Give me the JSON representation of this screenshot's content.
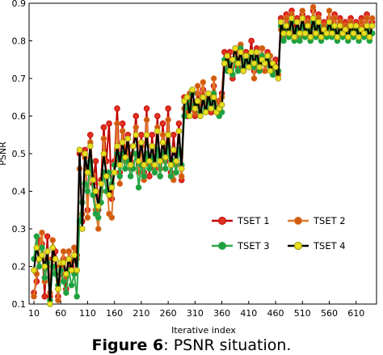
{
  "caption": {
    "label": "Figure 6",
    "text": ": PSNR situation."
  },
  "chart_data": {
    "type": "line",
    "xlabel": "Iterative index",
    "ylabel": "PSNR",
    "xlim": [
      1,
      648
    ],
    "ylim": [
      0.1,
      0.9
    ],
    "x_ticks": [
      10,
      60,
      110,
      160,
      210,
      260,
      310,
      360,
      410,
      460,
      510,
      560,
      610
    ],
    "y_ticks": [
      0.1,
      0.2,
      0.3,
      0.4,
      0.5,
      0.6,
      0.7,
      0.8,
      0.9
    ],
    "legend_position": "lower-right",
    "x": [
      10,
      15,
      20,
      25,
      30,
      35,
      40,
      45,
      50,
      55,
      60,
      65,
      70,
      75,
      80,
      85,
      90,
      95,
      100,
      105,
      110,
      115,
      120,
      125,
      130,
      135,
      140,
      145,
      150,
      155,
      160,
      165,
      170,
      175,
      180,
      185,
      190,
      195,
      200,
      205,
      210,
      215,
      220,
      225,
      230,
      235,
      240,
      245,
      250,
      255,
      260,
      265,
      270,
      275,
      280,
      285,
      290,
      295,
      300,
      305,
      310,
      315,
      320,
      325,
      330,
      335,
      340,
      345,
      350,
      355,
      360,
      365,
      370,
      375,
      380,
      385,
      390,
      395,
      400,
      405,
      410,
      415,
      420,
      425,
      430,
      435,
      440,
      445,
      450,
      455,
      460,
      465,
      470,
      475,
      480,
      485,
      490,
      495,
      500,
      505,
      510,
      515,
      520,
      525,
      530,
      535,
      540,
      545,
      550,
      555,
      560,
      565,
      570,
      575,
      580,
      585,
      590,
      595,
      600,
      605,
      610,
      615,
      620,
      625,
      630,
      635,
      640
    ],
    "series": [
      {
        "name": "TSET 1",
        "line_color": "#c00000",
        "marker_color": "#e03020",
        "values": [
          0.13,
          0.16,
          0.27,
          0.26,
          0.12,
          0.28,
          0.12,
          0.22,
          0.24,
          0.12,
          0.18,
          0.22,
          0.14,
          0.24,
          0.2,
          0.25,
          0.23,
          0.5,
          0.32,
          0.51,
          0.35,
          0.55,
          0.42,
          0.48,
          0.35,
          0.43,
          0.57,
          0.48,
          0.58,
          0.38,
          0.48,
          0.62,
          0.45,
          0.58,
          0.5,
          0.55,
          0.48,
          0.52,
          0.6,
          0.47,
          0.55,
          0.45,
          0.62,
          0.44,
          0.55,
          0.46,
          0.6,
          0.44,
          0.58,
          0.48,
          0.62,
          0.45,
          0.55,
          0.47,
          0.58,
          0.43,
          0.65,
          0.6,
          0.64,
          0.62,
          0.6,
          0.66,
          0.63,
          0.67,
          0.62,
          0.65,
          0.61,
          0.68,
          0.62,
          0.64,
          0.66,
          0.77,
          0.74,
          0.77,
          0.7,
          0.78,
          0.73,
          0.79,
          0.72,
          0.77,
          0.74,
          0.8,
          0.72,
          0.78,
          0.74,
          0.78,
          0.72,
          0.77,
          0.74,
          0.71,
          0.75,
          0.72,
          0.86,
          0.82,
          0.87,
          0.84,
          0.88,
          0.83,
          0.86,
          0.82,
          0.87,
          0.84,
          0.86,
          0.82,
          0.88,
          0.84,
          0.87,
          0.82,
          0.85,
          0.83,
          0.86,
          0.84,
          0.87,
          0.82,
          0.86,
          0.84,
          0.85,
          0.83,
          0.86,
          0.82,
          0.85,
          0.84,
          0.86,
          0.83,
          0.87,
          0.82,
          0.85
        ]
      },
      {
        "name": "TSET 2",
        "line_color": "#e07a2a",
        "marker_color": "#d05a10",
        "values": [
          0.12,
          0.18,
          0.25,
          0.29,
          0.16,
          0.22,
          0.13,
          0.27,
          0.2,
          0.11,
          0.2,
          0.24,
          0.17,
          0.24,
          0.21,
          0.25,
          0.22,
          0.46,
          0.34,
          0.49,
          0.33,
          0.53,
          0.44,
          0.35,
          0.3,
          0.4,
          0.54,
          0.45,
          0.34,
          0.33,
          0.47,
          0.58,
          0.42,
          0.56,
          0.48,
          0.52,
          0.46,
          0.5,
          0.57,
          0.45,
          0.52,
          0.43,
          0.59,
          0.47,
          0.52,
          0.45,
          0.57,
          0.46,
          0.55,
          0.46,
          0.59,
          0.44,
          0.43,
          0.47,
          0.56,
          0.44,
          0.62,
          0.61,
          0.66,
          0.63,
          0.61,
          0.68,
          0.64,
          0.69,
          0.62,
          0.65,
          0.63,
          0.7,
          0.64,
          0.61,
          0.65,
          0.74,
          0.75,
          0.73,
          0.71,
          0.77,
          0.75,
          0.79,
          0.73,
          0.76,
          0.75,
          0.77,
          0.7,
          0.76,
          0.74,
          0.78,
          0.72,
          0.74,
          0.76,
          0.72,
          0.73,
          0.71,
          0.83,
          0.81,
          0.86,
          0.83,
          0.87,
          0.82,
          0.85,
          0.81,
          0.88,
          0.83,
          0.85,
          0.8,
          0.89,
          0.83,
          0.86,
          0.81,
          0.84,
          0.82,
          0.88,
          0.83,
          0.86,
          0.81,
          0.85,
          0.83,
          0.84,
          0.82,
          0.85,
          0.81,
          0.84,
          0.83,
          0.85,
          0.82,
          0.86,
          0.81,
          0.86
        ]
      },
      {
        "name": "TSET 3",
        "line_color": "#2eaa4a",
        "marker_color": "#1fa040",
        "values": [
          0.22,
          0.28,
          0.2,
          0.25,
          0.17,
          0.21,
          0.11,
          0.2,
          0.18,
          0.15,
          0.19,
          0.16,
          0.13,
          0.19,
          0.15,
          0.18,
          0.12,
          0.32,
          0.37,
          0.42,
          0.4,
          0.48,
          0.39,
          0.34,
          0.33,
          0.37,
          0.45,
          0.4,
          0.45,
          0.42,
          0.47,
          0.5,
          0.44,
          0.5,
          0.46,
          0.48,
          0.44,
          0.46,
          0.5,
          0.41,
          0.47,
          0.44,
          0.5,
          0.46,
          0.49,
          0.45,
          0.51,
          0.44,
          0.5,
          0.46,
          0.52,
          0.44,
          0.48,
          0.45,
          0.51,
          0.47,
          0.6,
          0.64,
          0.62,
          0.66,
          0.63,
          0.64,
          0.61,
          0.65,
          0.62,
          0.64,
          0.63,
          0.66,
          0.62,
          0.6,
          0.61,
          0.75,
          0.72,
          0.74,
          0.71,
          0.75,
          0.72,
          0.78,
          0.73,
          0.75,
          0.74,
          0.76,
          0.73,
          0.75,
          0.72,
          0.76,
          0.74,
          0.75,
          0.73,
          0.71,
          0.73,
          0.72,
          0.84,
          0.8,
          0.83,
          0.81,
          0.85,
          0.8,
          0.83,
          0.8,
          0.84,
          0.81,
          0.83,
          0.8,
          0.85,
          0.81,
          0.84,
          0.8,
          0.82,
          0.81,
          0.84,
          0.81,
          0.83,
          0.8,
          0.82,
          0.81,
          0.83,
          0.8,
          0.82,
          0.81,
          0.83,
          0.8,
          0.82,
          0.81,
          0.83,
          0.8,
          0.82
        ]
      },
      {
        "name": "TSET 4",
        "line_color": "#000000",
        "marker_color": "#e8e020",
        "values": [
          0.19,
          0.25,
          0.22,
          0.23,
          0.2,
          0.24,
          0.1,
          0.25,
          0.22,
          0.14,
          0.21,
          0.21,
          0.18,
          0.22,
          0.19,
          0.23,
          0.19,
          0.51,
          0.3,
          0.5,
          0.45,
          0.52,
          0.43,
          0.4,
          0.36,
          0.42,
          0.5,
          0.44,
          0.39,
          0.41,
          0.45,
          0.52,
          0.47,
          0.53,
          0.49,
          0.54,
          0.47,
          0.52,
          0.55,
          0.48,
          0.53,
          0.47,
          0.55,
          0.48,
          0.52,
          0.47,
          0.56,
          0.48,
          0.53,
          0.49,
          0.55,
          0.47,
          0.51,
          0.48,
          0.56,
          0.46,
          0.64,
          0.65,
          0.6,
          0.67,
          0.62,
          0.64,
          0.6,
          0.65,
          0.61,
          0.66,
          0.62,
          0.65,
          0.61,
          0.62,
          0.63,
          0.74,
          0.76,
          0.72,
          0.75,
          0.78,
          0.74,
          0.77,
          0.72,
          0.76,
          0.73,
          0.77,
          0.74,
          0.77,
          0.73,
          0.75,
          0.74,
          0.76,
          0.72,
          0.74,
          0.73,
          0.7,
          0.85,
          0.82,
          0.84,
          0.82,
          0.86,
          0.81,
          0.85,
          0.82,
          0.86,
          0.82,
          0.84,
          0.81,
          0.86,
          0.82,
          0.85,
          0.81,
          0.83,
          0.82,
          0.85,
          0.82,
          0.84,
          0.81,
          0.84,
          0.82,
          0.83,
          0.81,
          0.84,
          0.82,
          0.84,
          0.81,
          0.83,
          0.82,
          0.84,
          0.81,
          0.84
        ]
      }
    ]
  }
}
